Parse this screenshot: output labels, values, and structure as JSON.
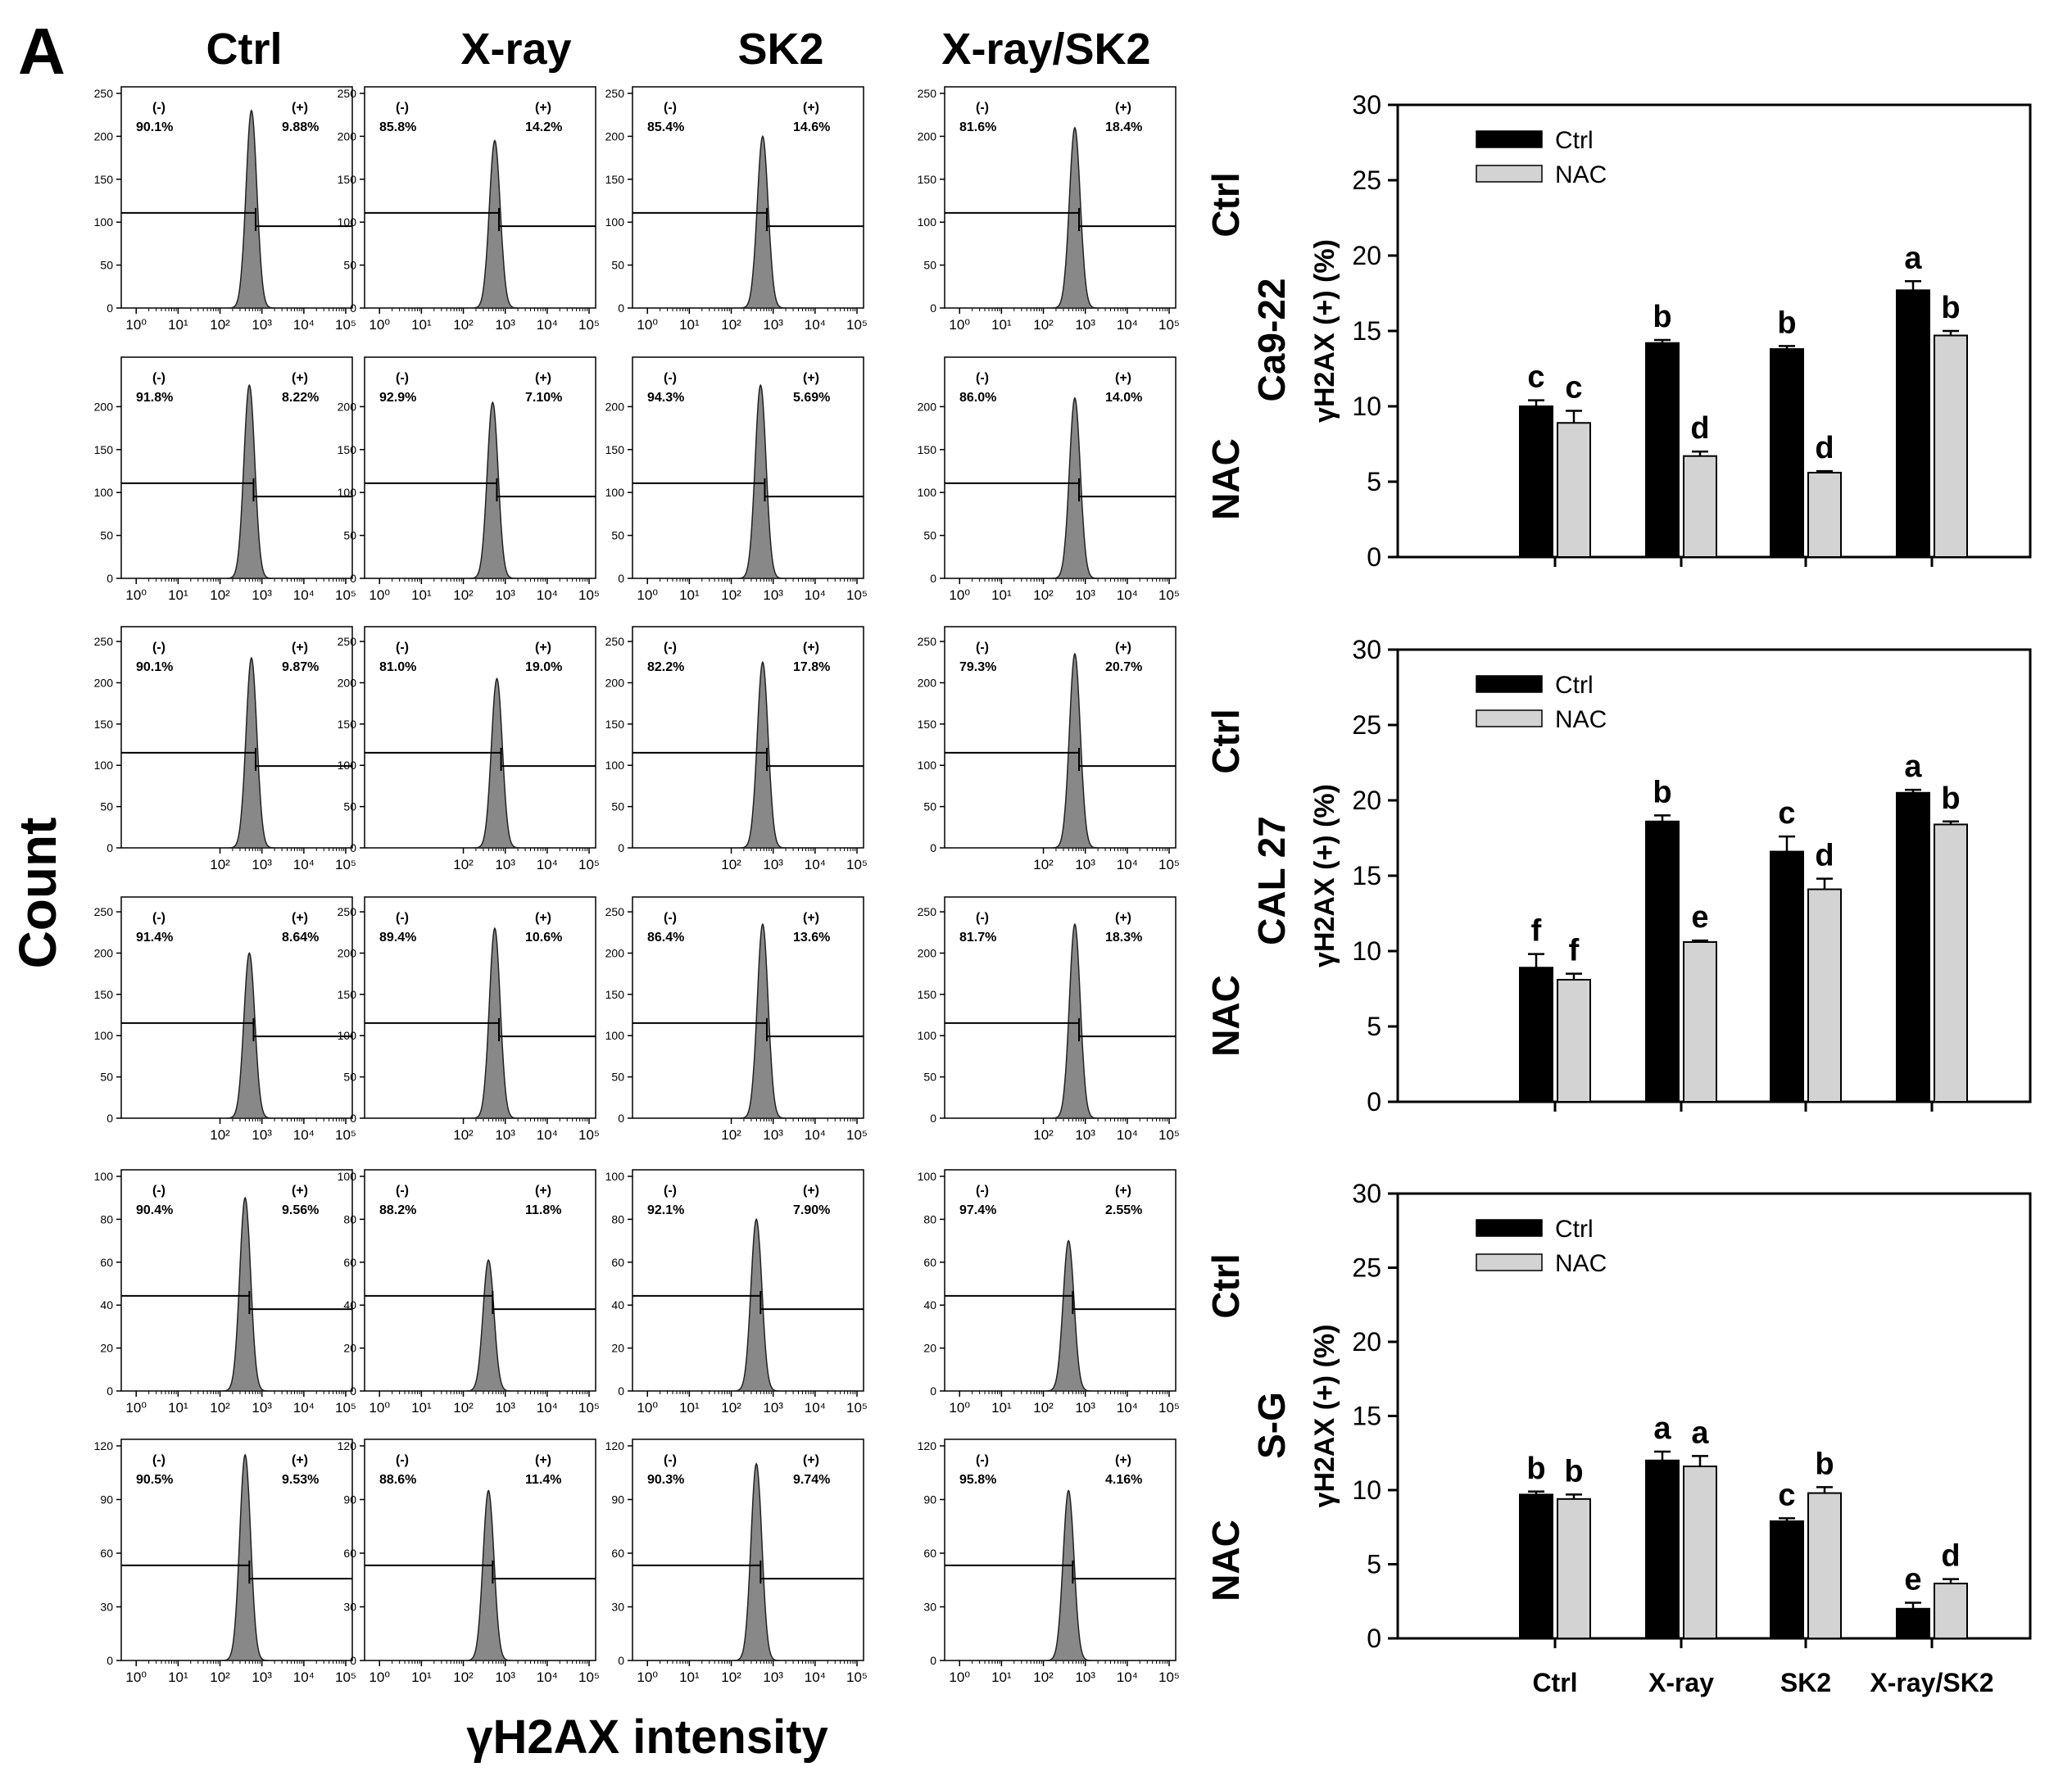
{
  "panel_label": "A",
  "column_headers": [
    "Ctrl",
    "X-ray",
    "SK2",
    "X-ray/SK2"
  ],
  "y_axis_label": "Count",
  "x_axis_label": "γH2AX intensity",
  "cell_lines": [
    "Ca9-22",
    "CAL 27",
    "S-G"
  ],
  "row_labels": [
    "Ctrl",
    "NAC",
    "Ctrl",
    "NAC",
    "Ctrl",
    "NAC"
  ],
  "histogram_rows": [
    {
      "cell_line": "Ca9-22",
      "treatment": "Ctrl",
      "ymax": 250,
      "yticks": [
        0,
        50,
        100,
        150,
        200,
        250
      ],
      "xticks": [
        "10⁰",
        "10¹",
        "10²",
        "10³",
        "10⁴",
        "10⁵"
      ],
      "panels": [
        {
          "neg_label": "(-)",
          "pos_label": "(+)",
          "neg": "90.1%",
          "pos": "9.88%",
          "peak": 230,
          "center": 2.75
        },
        {
          "neg_label": "(-)",
          "pos_label": "(+)",
          "neg": "85.8%",
          "pos": "14.2%",
          "peak": 195,
          "center": 2.75
        },
        {
          "neg_label": "(-)",
          "pos_label": "(+)",
          "neg": "85.4%",
          "pos": "14.6%",
          "peak": 200,
          "center": 2.75
        },
        {
          "neg_label": "(-)",
          "pos_label": "(+)",
          "neg": "81.6%",
          "pos": "18.4%",
          "peak": 210,
          "center": 2.75
        }
      ]
    },
    {
      "cell_line": "Ca9-22",
      "treatment": "NAC",
      "ymax": 250,
      "yticks": [
        0,
        50,
        100,
        150,
        200
      ],
      "xticks": [
        "10⁰",
        "10¹",
        "10²",
        "10³",
        "10⁴",
        "10⁵"
      ],
      "panels": [
        {
          "neg_label": "(-)",
          "pos_label": "(+)",
          "neg": "91.8%",
          "pos": "8.22%",
          "peak": 225,
          "center": 2.7
        },
        {
          "neg_label": "(-)",
          "pos_label": "(+)",
          "neg": "92.9%",
          "pos": "7.10%",
          "peak": 205,
          "center": 2.7
        },
        {
          "neg_label": "(-)",
          "pos_label": "(+)",
          "neg": "94.3%",
          "pos": "5.69%",
          "peak": 225,
          "center": 2.7
        },
        {
          "neg_label": "(-)",
          "pos_label": "(+)",
          "neg": "86.0%",
          "pos": "14.0%",
          "peak": 210,
          "center": 2.75
        }
      ]
    },
    {
      "cell_line": "CAL 27",
      "treatment": "Ctrl",
      "ymax": 260,
      "yticks": [
        0,
        50,
        100,
        150,
        200,
        250
      ],
      "xticks": [
        "10²",
        "10³",
        "10⁴",
        "10⁵"
      ],
      "panels": [
        {
          "neg_label": "(-)",
          "pos_label": "(+)",
          "neg": "90.1%",
          "pos": "9.87%",
          "peak": 230,
          "center": 2.75
        },
        {
          "neg_label": "(-)",
          "pos_label": "(+)",
          "neg": "81.0%",
          "pos": "19.0%",
          "peak": 205,
          "center": 2.8
        },
        {
          "neg_label": "(-)",
          "pos_label": "(+)",
          "neg": "82.2%",
          "pos": "17.8%",
          "peak": 225,
          "center": 2.75
        },
        {
          "neg_label": "(-)",
          "pos_label": "(+)",
          "neg": "79.3%",
          "pos": "20.7%",
          "peak": 235,
          "center": 2.75
        }
      ]
    },
    {
      "cell_line": "CAL 27",
      "treatment": "NAC",
      "ymax": 260,
      "yticks": [
        0,
        50,
        100,
        150,
        200,
        250
      ],
      "xticks": [
        "10²",
        "10³",
        "10⁴",
        "10⁵"
      ],
      "panels": [
        {
          "neg_label": "(-)",
          "pos_label": "(+)",
          "neg": "91.4%",
          "pos": "8.64%",
          "peak": 200,
          "center": 2.7
        },
        {
          "neg_label": "(-)",
          "pos_label": "(+)",
          "neg": "89.4%",
          "pos": "10.6%",
          "peak": 230,
          "center": 2.75
        },
        {
          "neg_label": "(-)",
          "pos_label": "(+)",
          "neg": "86.4%",
          "pos": "13.6%",
          "peak": 235,
          "center": 2.75
        },
        {
          "neg_label": "(-)",
          "pos_label": "(+)",
          "neg": "81.7%",
          "pos": "18.3%",
          "peak": 235,
          "center": 2.75
        }
      ]
    },
    {
      "cell_line": "S-G",
      "treatment": "Ctrl",
      "ymax": 100,
      "yticks": [
        0,
        20,
        40,
        60,
        80,
        100
      ],
      "xticks": [
        "10⁰",
        "10¹",
        "10²",
        "10³",
        "10⁴",
        "10⁵"
      ],
      "panels": [
        {
          "neg_label": "(-)",
          "pos_label": "(+)",
          "neg": "90.4%",
          "pos": "9.56%",
          "peak": 90,
          "center": 2.6
        },
        {
          "neg_label": "(-)",
          "pos_label": "(+)",
          "neg": "88.2%",
          "pos": "11.8%",
          "peak": 61,
          "center": 2.6
        },
        {
          "neg_label": "(-)",
          "pos_label": "(+)",
          "neg": "92.1%",
          "pos": "7.90%",
          "peak": 80,
          "center": 2.6
        },
        {
          "neg_label": "(-)",
          "pos_label": "(+)",
          "neg": "97.4%",
          "pos": "2.55%",
          "peak": 70,
          "center": 2.6
        }
      ]
    },
    {
      "cell_line": "S-G",
      "treatment": "NAC",
      "ymax": 120,
      "yticks": [
        0,
        30,
        60,
        90,
        120
      ],
      "xticks": [
        "10⁰",
        "10¹",
        "10²",
        "10³",
        "10⁴",
        "10⁵"
      ],
      "panels": [
        {
          "neg_label": "(-)",
          "pos_label": "(+)",
          "neg": "90.5%",
          "pos": "9.53%",
          "peak": 115,
          "center": 2.6
        },
        {
          "neg_label": "(-)",
          "pos_label": "(+)",
          "neg": "88.6%",
          "pos": "11.4%",
          "peak": 95,
          "center": 2.6
        },
        {
          "neg_label": "(-)",
          "pos_label": "(+)",
          "neg": "90.3%",
          "pos": "9.74%",
          "peak": 110,
          "center": 2.6
        },
        {
          "neg_label": "(-)",
          "pos_label": "(+)",
          "neg": "95.8%",
          "pos": "4.16%",
          "peak": 95,
          "center": 2.6
        }
      ]
    }
  ],
  "colors": {
    "ctrl_bar": "#000000",
    "nac_bar": "#d3d3d3",
    "histogram_fill": "#888888"
  },
  "chart_data": [
    {
      "type": "bar",
      "title": "Ca9-22",
      "categories": [
        "Ctrl",
        "X-ray",
        "SK2",
        "X-ray/SK2"
      ],
      "show_category_labels": false,
      "xlabel": "",
      "ylabel": "γH2AX (+) (%)",
      "ylim": [
        0,
        30
      ],
      "yticks": [
        0,
        5,
        10,
        15,
        20,
        25,
        30
      ],
      "legend": "top-left",
      "series": [
        {
          "name": "Ctrl",
          "values": [
            10.0,
            14.2,
            13.8,
            17.7
          ],
          "errors": [
            0.4,
            0.2,
            0.2,
            0.6
          ],
          "letters": [
            "c",
            "b",
            "b",
            "a"
          ]
        },
        {
          "name": "NAC",
          "values": [
            8.9,
            6.7,
            5.6,
            14.7
          ],
          "errors": [
            0.8,
            0.3,
            0.1,
            0.3
          ],
          "letters": [
            "c",
            "d",
            "d",
            "b"
          ]
        }
      ]
    },
    {
      "type": "bar",
      "title": "CAL 27",
      "categories": [
        "Ctrl",
        "X-ray",
        "SK2",
        "X-ray/SK2"
      ],
      "show_category_labels": false,
      "xlabel": "",
      "ylabel": "γH2AX (+) (%)",
      "ylim": [
        0,
        30
      ],
      "yticks": [
        0,
        5,
        10,
        15,
        20,
        25,
        30
      ],
      "legend": "top-left",
      "series": [
        {
          "name": "Ctrl",
          "values": [
            8.9,
            18.6,
            16.6,
            20.5
          ],
          "errors": [
            0.9,
            0.4,
            1.0,
            0.2
          ],
          "letters": [
            "f",
            "b",
            "c",
            "a"
          ]
        },
        {
          "name": "NAC",
          "values": [
            8.1,
            10.6,
            14.1,
            18.4
          ],
          "errors": [
            0.4,
            0.1,
            0.7,
            0.2
          ],
          "letters": [
            "f",
            "e",
            "d",
            "b"
          ]
        }
      ]
    },
    {
      "type": "bar",
      "title": "S-G",
      "categories": [
        "Ctrl",
        "X-ray",
        "SK2",
        "X-ray/SK2"
      ],
      "show_category_labels": true,
      "xlabel": "",
      "ylabel": "γH2AX (+) (%)",
      "ylim": [
        0,
        30
      ],
      "yticks": [
        0,
        5,
        10,
        15,
        20,
        25,
        30
      ],
      "legend": "top-left",
      "series": [
        {
          "name": "Ctrl",
          "values": [
            9.7,
            12.0,
            7.9,
            2.0
          ],
          "errors": [
            0.2,
            0.6,
            0.2,
            0.4
          ],
          "letters": [
            "b",
            "a",
            "c",
            "e"
          ]
        },
        {
          "name": "NAC",
          "values": [
            9.4,
            11.6,
            9.8,
            3.7
          ],
          "errors": [
            0.3,
            0.7,
            0.4,
            0.3
          ],
          "letters": [
            "b",
            "a",
            "b",
            "d"
          ]
        }
      ]
    }
  ]
}
